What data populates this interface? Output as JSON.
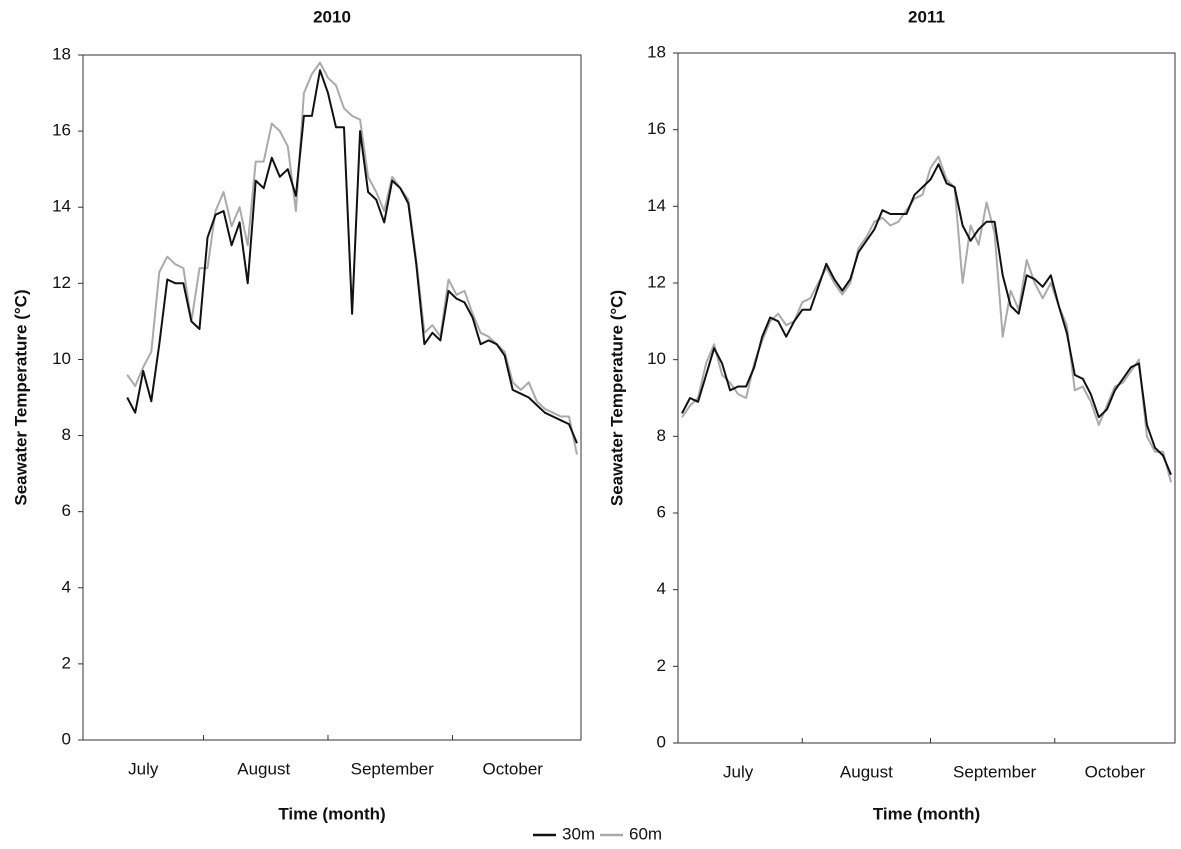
{
  "chart_data": [
    {
      "type": "line",
      "title": "2010",
      "xlabel": "Time (month)",
      "ylabel": "Seawater Temperature (°C)",
      "categories": [
        null,
        null,
        null,
        null,
        null,
        null,
        null,
        "July",
        null,
        null,
        null,
        null,
        null,
        null,
        null,
        null,
        null,
        null,
        null,
        null,
        null,
        null,
        "August",
        null,
        null,
        null,
        null,
        null,
        null,
        null,
        null,
        null,
        null,
        null,
        null,
        null,
        null,
        null,
        "September",
        null,
        null,
        null,
        null,
        null,
        null,
        null,
        null,
        null,
        null,
        null,
        null,
        null,
        null,
        "October",
        null,
        null,
        null,
        null,
        null,
        null,
        null,
        null
      ],
      "ylim": [
        0,
        18
      ],
      "yticks": [
        0,
        2,
        4,
        6,
        8,
        10,
        12,
        14,
        16,
        18
      ],
      "series": [
        {
          "name": "30m",
          "color": "#111111",
          "values": [
            null,
            null,
            null,
            null,
            null,
            9.0,
            8.6,
            9.7,
            8.9,
            10.4,
            12.1,
            12.0,
            12.0,
            11.0,
            10.8,
            13.2,
            13.8,
            13.9,
            13.0,
            13.6,
            12.0,
            14.7,
            14.5,
            15.3,
            14.8,
            15.0,
            14.3,
            16.4,
            16.4,
            17.6,
            17.0,
            16.1,
            16.1,
            11.2,
            16.0,
            14.4,
            14.2,
            13.6,
            14.7,
            14.5,
            14.1,
            12.5,
            10.4,
            10.7,
            10.5,
            11.8,
            11.6,
            11.5,
            11.1,
            10.4,
            10.5,
            10.4,
            10.1,
            9.2,
            9.1,
            9.0,
            8.8,
            8.6,
            8.5,
            8.4,
            8.3,
            7.8
          ]
        },
        {
          "name": "60m",
          "color": "#aaaaaa",
          "values": [
            null,
            null,
            null,
            null,
            null,
            9.6,
            9.3,
            9.8,
            10.2,
            12.3,
            12.7,
            12.5,
            12.4,
            11.0,
            12.4,
            12.4,
            13.9,
            14.4,
            13.5,
            14.0,
            13.0,
            15.2,
            15.2,
            16.2,
            16.0,
            15.6,
            13.9,
            17.0,
            17.5,
            17.8,
            17.4,
            17.2,
            16.6,
            16.4,
            16.3,
            14.8,
            14.4,
            13.9,
            14.8,
            14.5,
            14.2,
            12.6,
            10.7,
            10.9,
            10.6,
            12.1,
            11.7,
            11.8,
            11.2,
            10.7,
            10.6,
            10.4,
            10.2,
            9.4,
            9.2,
            9.4,
            8.9,
            8.7,
            8.6,
            8.5,
            8.5,
            7.5
          ]
        }
      ]
    },
    {
      "type": "line",
      "title": "2011",
      "xlabel": "Time (month)",
      "ylabel": "Seawater Temperature (°C)",
      "categories": [
        null,
        null,
        null,
        null,
        null,
        null,
        null,
        "July",
        null,
        null,
        null,
        null,
        null,
        null,
        null,
        null,
        null,
        null,
        null,
        null,
        null,
        null,
        null,
        "August",
        null,
        null,
        null,
        null,
        null,
        null,
        null,
        null,
        null,
        null,
        null,
        null,
        null,
        null,
        null,
        "September",
        null,
        null,
        null,
        null,
        null,
        null,
        null,
        null,
        null,
        null,
        null,
        null,
        null,
        null,
        "October",
        null,
        null,
        null,
        null,
        null,
        null,
        null
      ],
      "ylim": [
        0,
        18
      ],
      "yticks": [
        0,
        2,
        4,
        6,
        8,
        10,
        12,
        14,
        16,
        18
      ],
      "series": [
        {
          "color": "#111111",
          "values": [
            8.6,
            9.0,
            8.9,
            9.6,
            10.3,
            9.9,
            9.2,
            9.3,
            9.3,
            9.8,
            10.6,
            11.1,
            11.0,
            10.6,
            11.0,
            11.3,
            11.3,
            11.9,
            12.5,
            12.1,
            11.8,
            12.1,
            12.8,
            13.1,
            13.4,
            13.9,
            13.8,
            13.8,
            13.8,
            14.3,
            14.5,
            14.7,
            15.1,
            14.6,
            14.5,
            13.5,
            13.1,
            13.4,
            13.6,
            13.6,
            12.2,
            11.4,
            11.2,
            12.2,
            12.1,
            11.9,
            12.2,
            11.4,
            10.7,
            9.6,
            9.5,
            9.1,
            8.5,
            8.7,
            9.2,
            9.5,
            9.8,
            9.9,
            8.3,
            7.7,
            7.5,
            7.0
          ]
        },
        {
          "color": "#aaaaaa",
          "values": [
            8.5,
            8.8,
            9.0,
            9.9,
            10.4,
            9.6,
            9.4,
            9.1,
            9.0,
            9.9,
            10.5,
            11.0,
            11.2,
            10.9,
            11.0,
            11.5,
            11.6,
            12.0,
            12.4,
            12.0,
            11.7,
            12.0,
            12.9,
            13.2,
            13.6,
            13.7,
            13.5,
            13.6,
            13.9,
            14.2,
            14.3,
            15.0,
            15.3,
            14.7,
            14.5,
            12.0,
            13.5,
            13.0,
            14.1,
            13.3,
            10.6,
            11.8,
            11.3,
            12.6,
            12.0,
            11.6,
            12.0,
            11.4,
            10.9,
            9.2,
            9.3,
            8.9,
            8.3,
            8.8,
            9.3,
            9.4,
            9.7,
            10.0,
            8.0,
            7.6,
            7.6,
            6.8
          ]
        }
      ]
    }
  ]
}
